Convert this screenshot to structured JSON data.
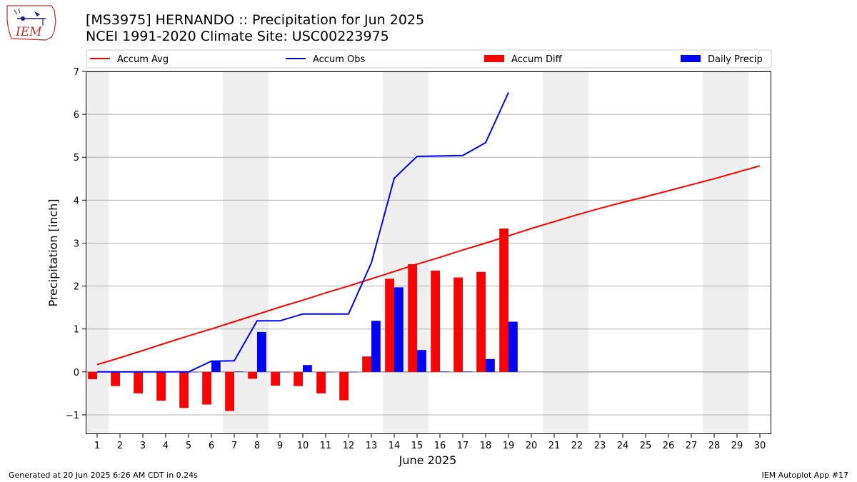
{
  "header": {
    "title_line1": "[MS3975] HERNANDO :: Precipitation for Jun 2025",
    "title_line2": "NCEI 1991-2020 Climate Site: USC00223975"
  },
  "logo": {
    "text": "IEM",
    "icon": "iem-iowa-logo"
  },
  "footer": {
    "left": "Generated at 20 Jun 2025 6:26 AM CDT in 0.24s",
    "right": "IEM Autoplot App #17"
  },
  "colors": {
    "accum_avg": "#ff0000",
    "accum_obs": "#0000ff",
    "accum_diff": "#ff0000",
    "daily_precip": "#0000ff",
    "weekend_shade": "#eeeeee",
    "grid": "#b0b0b0"
  },
  "chart_data": {
    "type": "bar",
    "xlabel": "June 2025",
    "ylabel": "Precipitation [inch]",
    "ylim": [
      -1.45,
      7.0
    ],
    "yticks": [
      -1,
      0,
      1,
      2,
      3,
      4,
      5,
      6,
      7
    ],
    "ytick_labels": [
      "−1",
      "0",
      "1",
      "2",
      "3",
      "4",
      "5",
      "6",
      "7"
    ],
    "grid": "horizontal",
    "legend_placement": "top",
    "legend": [
      "Accum Avg",
      "Accum Obs",
      "Accum Diff",
      "Daily Precip"
    ],
    "days": [
      1,
      2,
      3,
      4,
      5,
      6,
      7,
      8,
      9,
      10,
      11,
      12,
      13,
      14,
      15,
      16,
      17,
      18,
      19,
      20,
      21,
      22,
      23,
      24,
      25,
      26,
      27,
      28,
      29,
      30
    ],
    "weekend_days": [
      1,
      7,
      8,
      14,
      15,
      21,
      22,
      28,
      29
    ],
    "series": [
      {
        "name": "Accum Avg",
        "kind": "line",
        "values": [
          0.17,
          0.33,
          0.5,
          0.67,
          0.84,
          1.0,
          1.17,
          1.34,
          1.51,
          1.67,
          1.84,
          2.0,
          2.17,
          2.34,
          2.51,
          2.67,
          2.84,
          3.0,
          3.17,
          3.34,
          3.5,
          3.66,
          3.81,
          3.95,
          4.08,
          4.22,
          4.36,
          4.5,
          4.65,
          4.8
        ]
      },
      {
        "name": "Accum Obs",
        "kind": "line",
        "values": [
          0.0,
          0.0,
          0.0,
          0.0,
          0.0,
          0.25,
          0.26,
          1.19,
          1.19,
          1.35,
          1.35,
          1.35,
          2.54,
          4.51,
          5.02,
          5.03,
          5.04,
          5.34,
          6.51
        ]
      },
      {
        "name": "Accum Diff",
        "kind": "bar",
        "values": [
          -0.17,
          -0.33,
          -0.5,
          -0.67,
          -0.84,
          -0.76,
          -0.91,
          -0.16,
          -0.32,
          -0.33,
          -0.5,
          -0.66,
          0.36,
          2.17,
          2.51,
          2.36,
          2.2,
          2.33,
          3.34
        ]
      },
      {
        "name": "Daily Precip",
        "kind": "bar",
        "values": [
          0.0,
          0.0,
          0.0,
          0.0,
          0.0,
          0.25,
          0.01,
          0.93,
          0.0,
          0.16,
          0.0,
          0.0,
          1.19,
          1.97,
          0.51,
          0.01,
          0.01,
          0.3,
          1.17
        ]
      }
    ]
  }
}
